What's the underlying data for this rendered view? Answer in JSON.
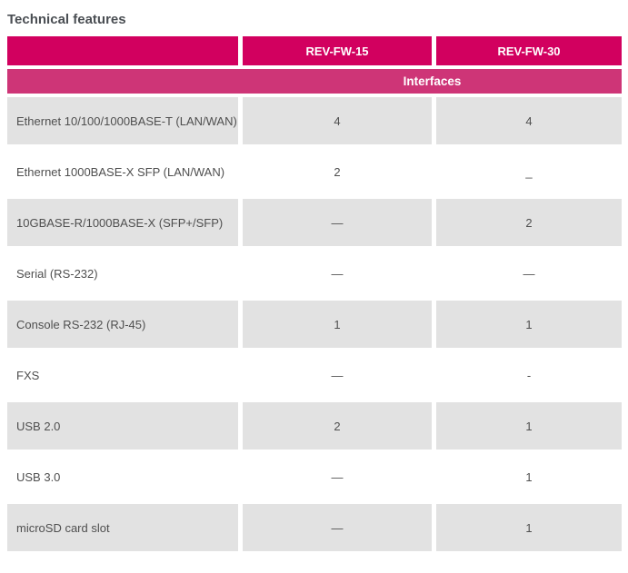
{
  "page": {
    "title": "Technical features"
  },
  "colors": {
    "header_bg": "#d2005f",
    "section_bg": "#ce3577",
    "row_alt_bg": "#e2e2e2",
    "header_text": "#ffffff",
    "body_text": "#4f4f4f"
  },
  "table": {
    "columns": [
      "",
      "REV-FW-15",
      "REV-FW-30"
    ],
    "section": "Interfaces",
    "rows": [
      {
        "label": "Ethernet 10/100/1000BASE-T (LAN/WAN)",
        "fw15": "4",
        "fw30": "4"
      },
      {
        "label": "Ethernet 1000BASE-X SFP (LAN/WAN)",
        "fw15": "2",
        "fw30": "_"
      },
      {
        "label": "10GBASE-R/1000BASE-X (SFP+/SFP)",
        "fw15": "—",
        "fw30": "2"
      },
      {
        "label": "Serial (RS-232)",
        "fw15": "—",
        "fw30": "—"
      },
      {
        "label": "Console RS-232 (RJ-45)",
        "fw15": "1",
        "fw30": "1"
      },
      {
        "label": "FXS",
        "fw15": "—",
        "fw30": "-"
      },
      {
        "label": "USB 2.0",
        "fw15": "2",
        "fw30": "1"
      },
      {
        "label": "USB 3.0",
        "fw15": "—",
        "fw30": "1"
      },
      {
        "label": "microSD card slot",
        "fw15": "—",
        "fw30": "1"
      }
    ]
  }
}
